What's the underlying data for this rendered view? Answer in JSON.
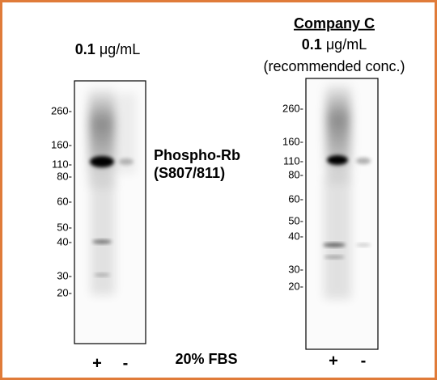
{
  "left_panel": {
    "concentration_value": "0.1",
    "concentration_unit": "μg/mL",
    "markers": [
      "260-",
      "160-",
      "110-",
      "80-",
      "60-",
      "50-",
      "40-",
      "30-",
      "20-"
    ],
    "lanes": [
      "+",
      "-"
    ]
  },
  "right_panel": {
    "company": "Company C",
    "concentration_value": "0.1",
    "concentration_unit": "μg/mL",
    "note": "(recommended conc.)",
    "markers": [
      "260-",
      "160-",
      "110-",
      "80-",
      "60-",
      "50-",
      "40-",
      "30-",
      "20-"
    ],
    "lanes": [
      "+",
      "-"
    ]
  },
  "target": {
    "name": "Phospho-Rb",
    "site": "(S807/811)"
  },
  "condition": "20% FBS"
}
